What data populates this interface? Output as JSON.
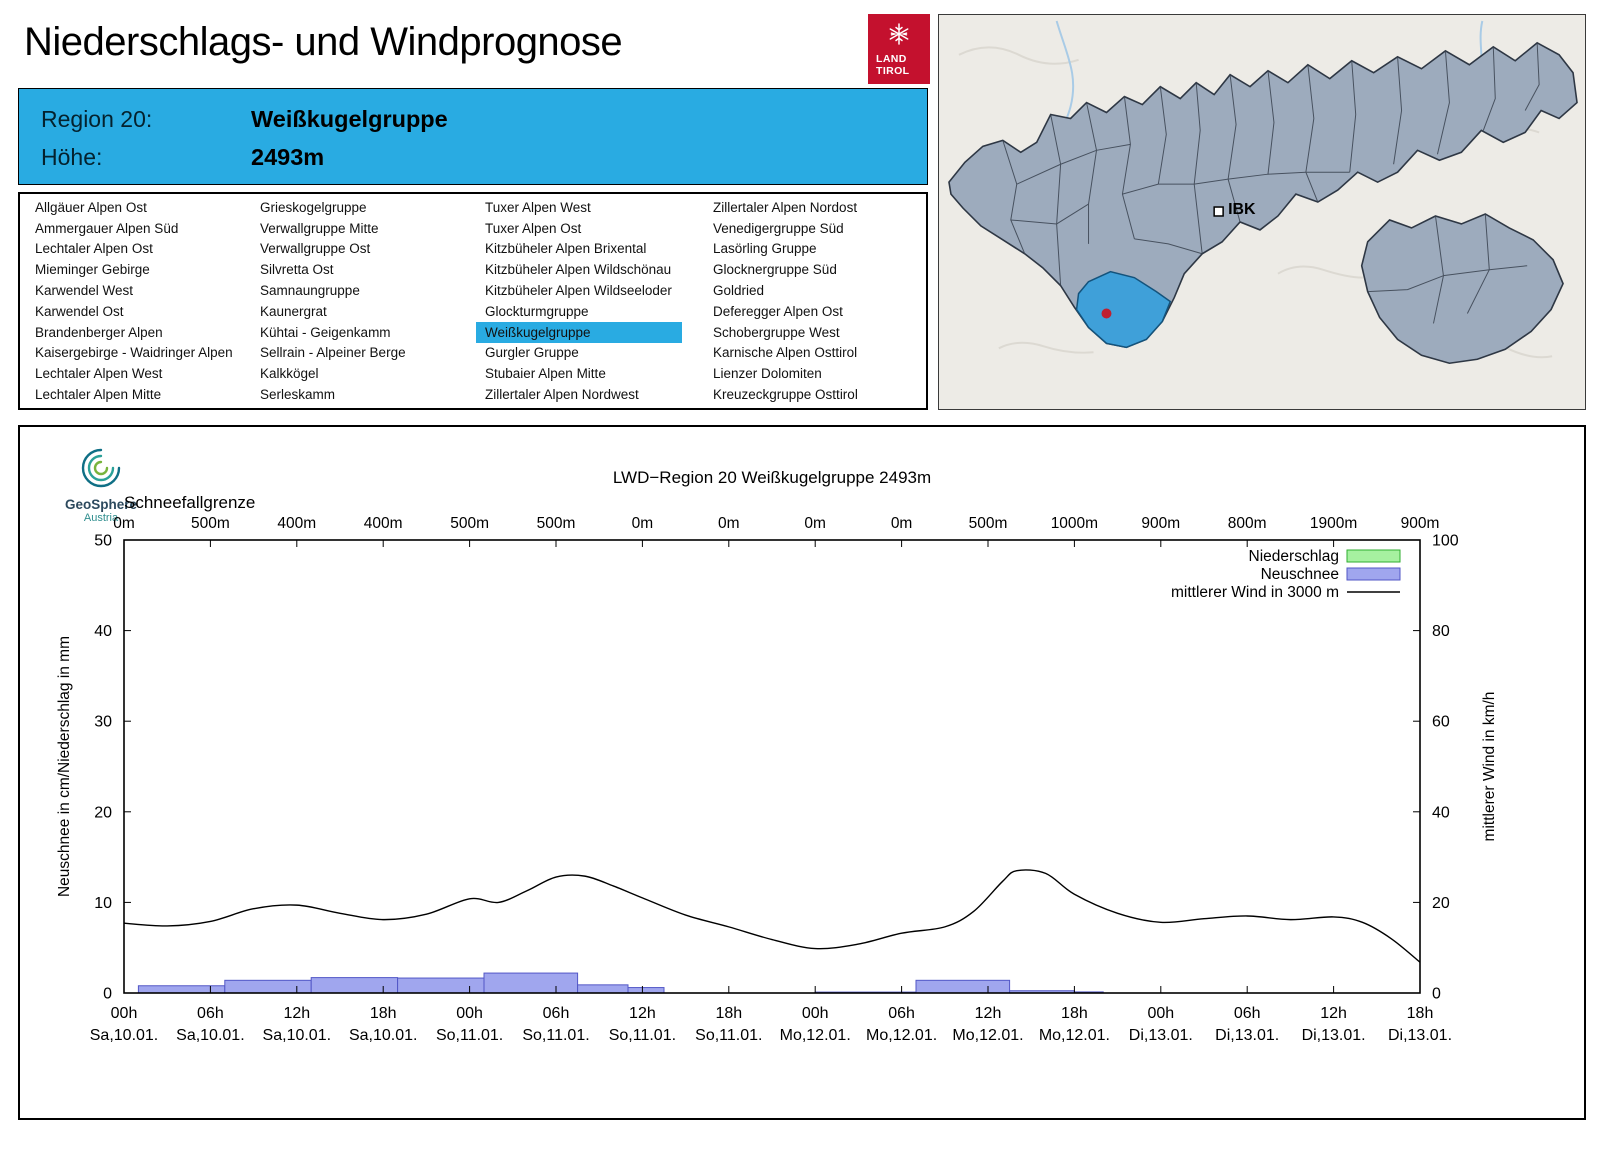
{
  "header": {
    "title": "Niederschlags- und Windprognose",
    "logo": {
      "line1": "LAND",
      "line2": "TIROL"
    }
  },
  "map": {
    "marker_label": "IBK"
  },
  "region_info": {
    "region_label": "Region 20:",
    "region_value": "Weißkugelgruppe",
    "elevation_label": "Höhe:",
    "elevation_value": "2493m",
    "background": "#29abe2"
  },
  "regions": {
    "selected": "Weißkugelgruppe",
    "highlight_color": "#29abe2",
    "columns": [
      [
        "Allgäuer Alpen Ost",
        "Ammergauer Alpen Süd",
        "Lechtaler Alpen Ost",
        "Mieminger Gebirge",
        "Karwendel West",
        "Karwendel Ost",
        "Brandenberger Alpen",
        "Kaisergebirge - Waidringer Alpen",
        "Lechtaler Alpen West",
        "Lechtaler Alpen Mitte"
      ],
      [
        "Grieskogelgruppe",
        "Verwallgruppe Mitte",
        "Verwallgruppe Ost",
        "Silvretta Ost",
        "Samnaungruppe",
        "Kaunergrat",
        "Kühtai - Geigenkamm",
        "Sellrain - Alpeiner Berge",
        "Kalkkögel",
        "Serleskamm"
      ],
      [
        "Tuxer Alpen West",
        "Tuxer Alpen Ost",
        "Kitzbüheler Alpen Brixental",
        "Kitzbüheler Alpen Wildschönau",
        "Kitzbüheler Alpen Wildseeloder",
        "Glockturmgruppe",
        "Weißkugelgruppe",
        "Gurgler Gruppe",
        "Stubaier Alpen Mitte",
        "Zillertaler Alpen Nordwest"
      ],
      [
        "Zillertaler Alpen Nordost",
        "Venedigergruppe Süd",
        "Lasörling Gruppe",
        "Glocknergruppe Süd",
        "Goldried",
        "Deferegger Alpen Ost",
        "Schobergruppe West",
        "Karnische Alpen Osttirol",
        "Lienzer Dolomiten",
        "Kreuzeckgruppe Osttirol"
      ]
    ]
  },
  "chart_meta": {
    "logo_name": "GeoSphere",
    "logo_sub": "Austria"
  },
  "chart_data": {
    "type": "mixed-bar-line",
    "title": "LWD−Region 20 Weißkugelgruppe 2493m",
    "snowline_label": "Schneefallgrenze",
    "snowline_values": [
      "0m",
      "500m",
      "400m",
      "400m",
      "500m",
      "500m",
      "0m",
      "0m",
      "0m",
      "0m",
      "500m",
      "1000m",
      "900m",
      "800m",
      "1900m",
      "900m"
    ],
    "ylabel": "Neuschnee in cm/Niederschlag in mm",
    "y2label": "mittlerer Wind in km/h",
    "ylim": [
      0,
      50
    ],
    "y2lim": [
      0,
      100
    ],
    "yticks": [
      0,
      10,
      20,
      30,
      40,
      50
    ],
    "y2ticks": [
      0,
      20,
      40,
      60,
      80,
      100
    ],
    "x_hours_total": 90,
    "x_tick_interval_hours": 6,
    "x_tick_times": [
      "00h",
      "06h",
      "12h",
      "18h",
      "00h",
      "06h",
      "12h",
      "18h",
      "00h",
      "06h",
      "12h",
      "18h",
      "00h",
      "06h",
      "12h",
      "18h"
    ],
    "x_tick_dates": [
      "Sa,10.01.",
      "Sa,10.01.",
      "Sa,10.01.",
      "Sa,10.01.",
      "So,11.01.",
      "So,11.01.",
      "So,11.01.",
      "So,11.01.",
      "Mo,12.01.",
      "Mo,12.01.",
      "Mo,12.01.",
      "Mo,12.01.",
      "Di,13.01.",
      "Di,13.01.",
      "Di,13.01.",
      "Di,13.01."
    ],
    "legend": [
      {
        "label": "Niederschlag",
        "type": "box",
        "fill": "#a6f1a0",
        "stroke": "#2fae2f"
      },
      {
        "label": "Neuschnee",
        "type": "box",
        "fill": "#a0a6ee",
        "stroke": "#5257c6"
      },
      {
        "label": "mittlerer Wind in 3000 m",
        "type": "line",
        "stroke": "#000000"
      }
    ],
    "niederschlag_mm_segments": [],
    "neuschnee_cm_segments": [
      [
        1,
        7,
        0.8
      ],
      [
        7,
        13,
        1.4
      ],
      [
        13,
        19,
        1.7
      ],
      [
        19,
        25,
        1.65
      ],
      [
        25,
        31.5,
        2.2
      ],
      [
        31.5,
        35,
        0.9
      ],
      [
        35,
        37.5,
        0.6
      ],
      [
        48,
        55,
        0.1
      ],
      [
        55,
        61.5,
        1.4
      ],
      [
        61.5,
        66,
        0.25
      ],
      [
        66,
        68,
        0.12
      ]
    ],
    "wind_kmh_points": [
      [
        0,
        15.4
      ],
      [
        3,
        14.8
      ],
      [
        6,
        15.8
      ],
      [
        9,
        18.6
      ],
      [
        12,
        19.4
      ],
      [
        15,
        17.6
      ],
      [
        18,
        16.2
      ],
      [
        21,
        17.4
      ],
      [
        24,
        20.8
      ],
      [
        26,
        20.0
      ],
      [
        28,
        22.6
      ],
      [
        30,
        25.6
      ],
      [
        32,
        25.8
      ],
      [
        34,
        23.6
      ],
      [
        36,
        21.0
      ],
      [
        39,
        17.2
      ],
      [
        42,
        14.6
      ],
      [
        45,
        11.8
      ],
      [
        48,
        9.8
      ],
      [
        51,
        10.8
      ],
      [
        54,
        13.2
      ],
      [
        57,
        14.6
      ],
      [
        59,
        18.0
      ],
      [
        61,
        24.6
      ],
      [
        62,
        27.0
      ],
      [
        64,
        26.4
      ],
      [
        66,
        21.8
      ],
      [
        69,
        17.6
      ],
      [
        72,
        15.6
      ],
      [
        75,
        16.4
      ],
      [
        78,
        17.0
      ],
      [
        81,
        16.2
      ],
      [
        84,
        16.8
      ],
      [
        86,
        15.6
      ],
      [
        88,
        12.0
      ],
      [
        90,
        6.8
      ]
    ]
  }
}
